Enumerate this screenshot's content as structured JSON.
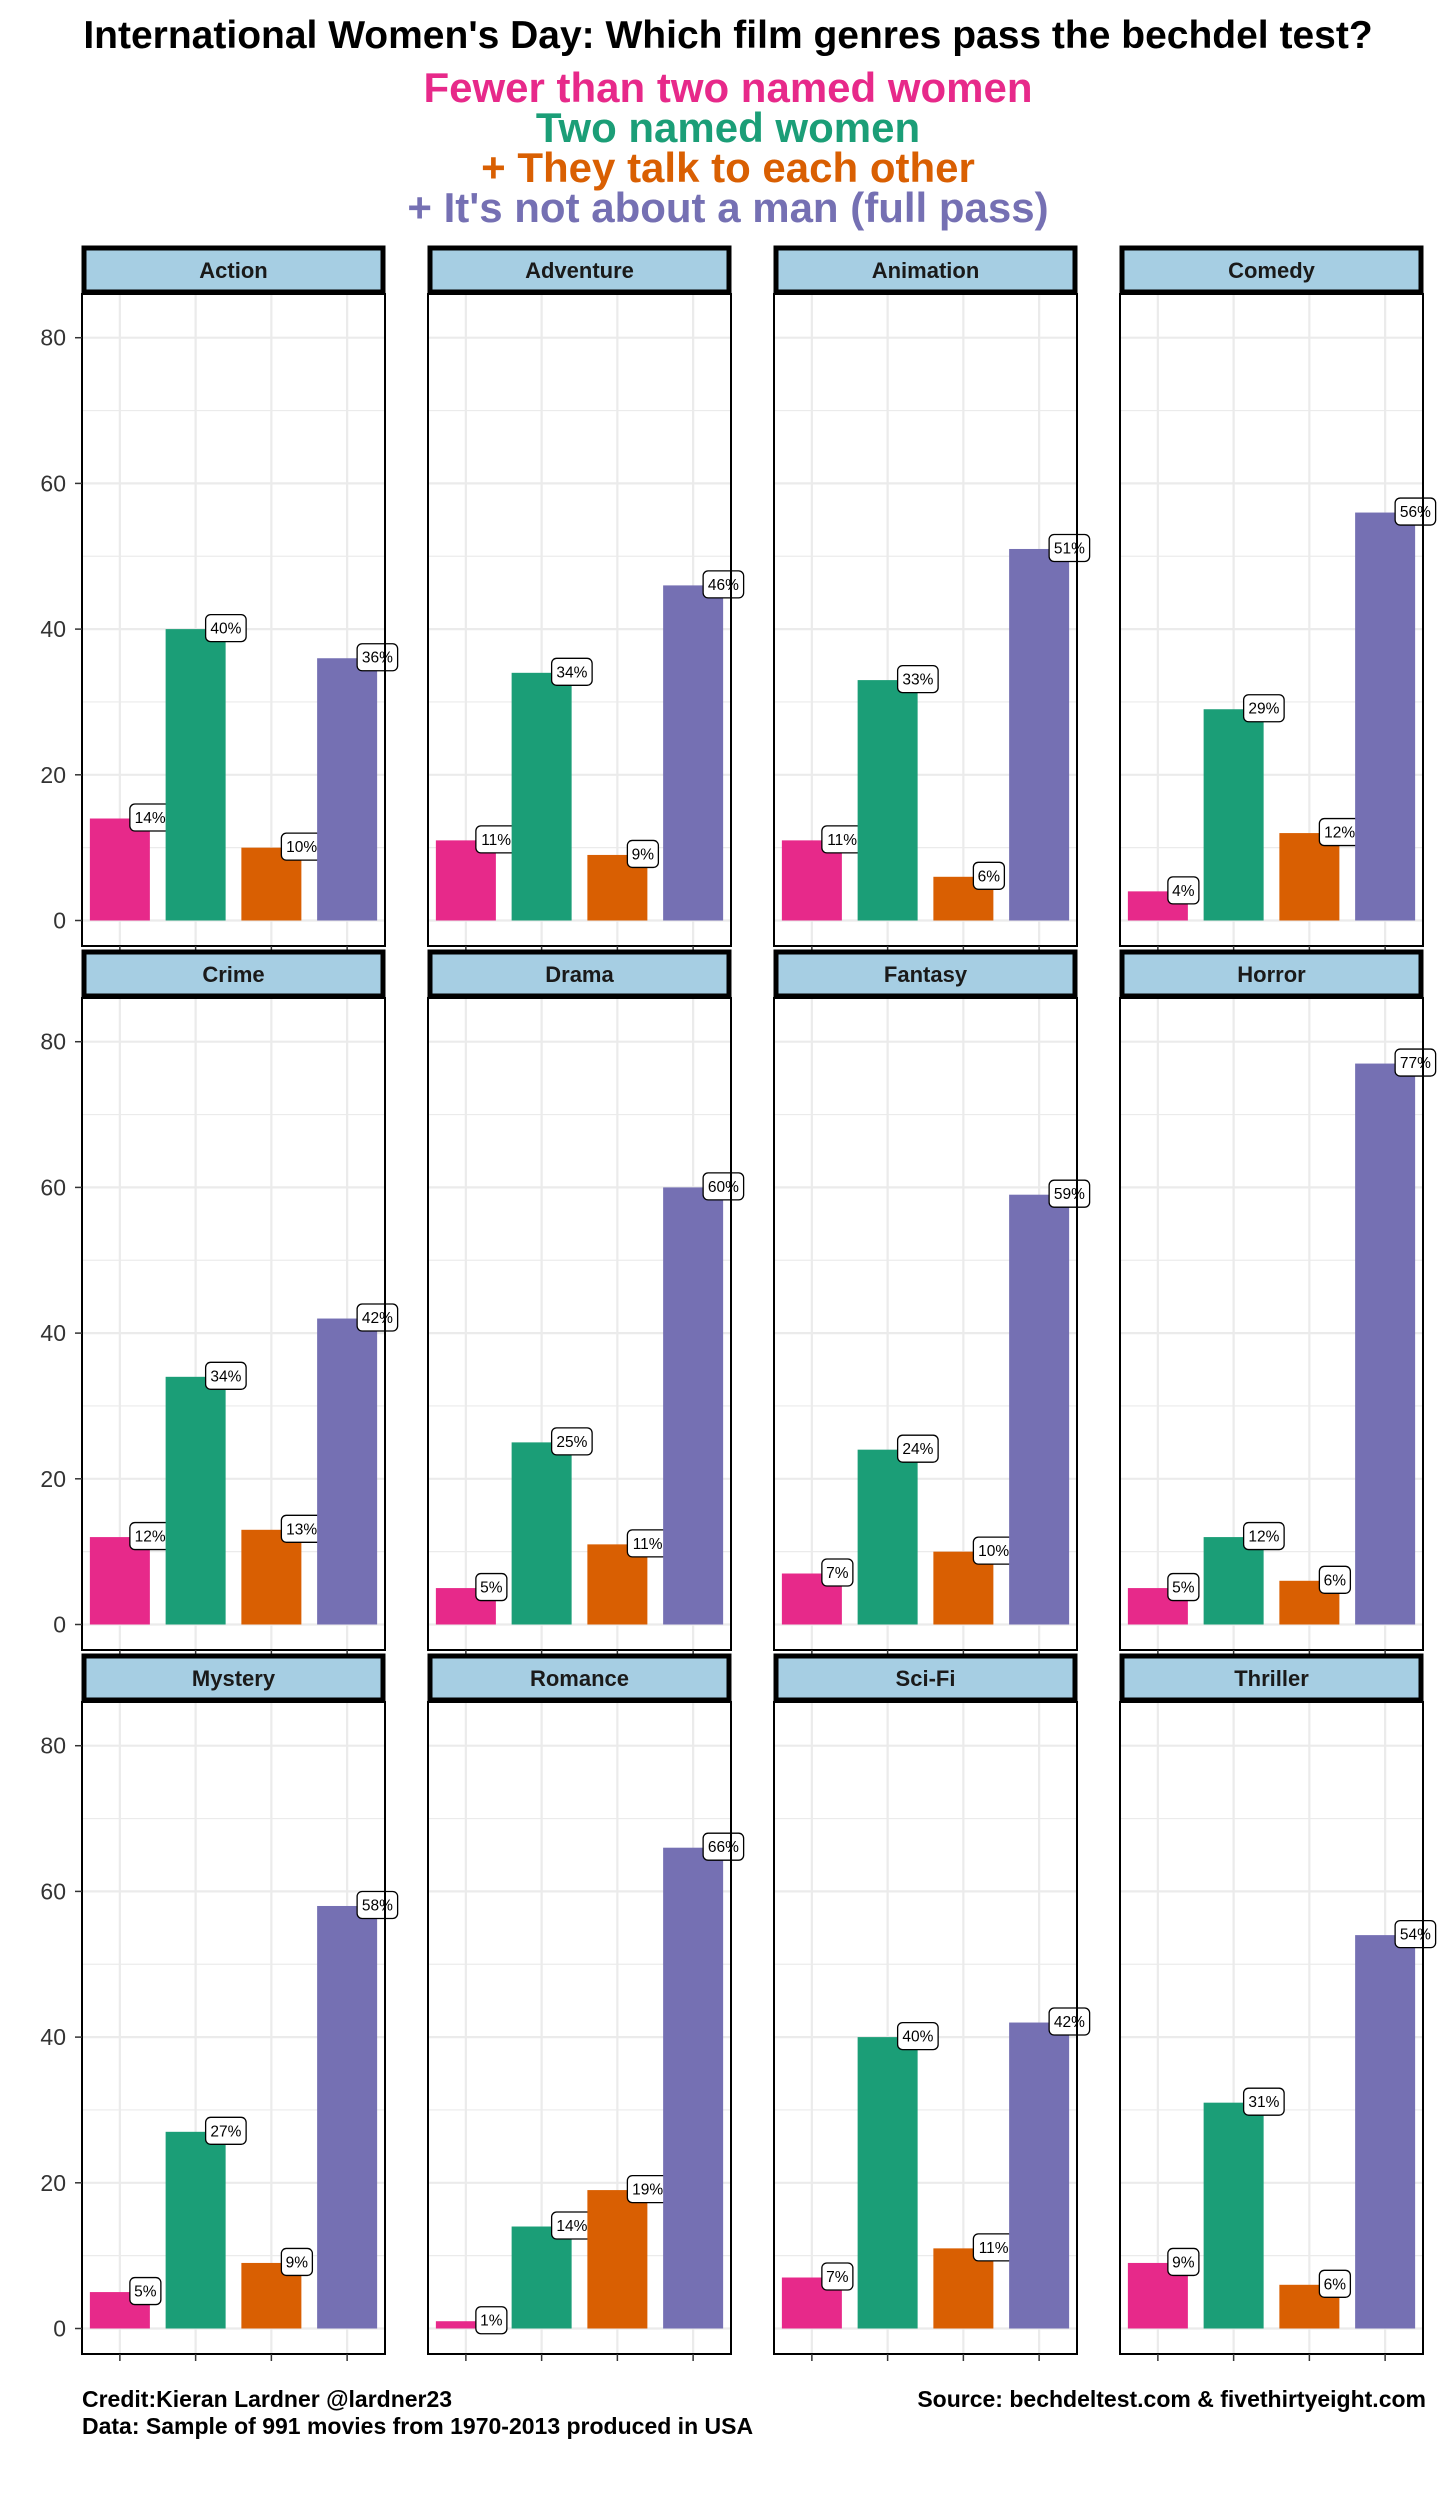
{
  "chart_data": {
    "type": "bar",
    "title": "International Women's Day: Which film genres pass the bechdel test?",
    "legend": [
      {
        "label": "Fewer than two named women",
        "color": "#E7298A"
      },
      {
        "label": "Two named women",
        "color": "#1B9E77"
      },
      {
        "label": "+ They talk to each other",
        "color": "#D95F02"
      },
      {
        "label": "+ It's not about a man (full pass)",
        "color": "#7570B3"
      }
    ],
    "legend_placement": "top-center",
    "y_ticks": [
      "0",
      "20",
      "40",
      "60",
      "80"
    ],
    "ylim": [
      -3.5,
      86
    ],
    "grid": true,
    "facets": [
      {
        "name": "Action",
        "values": [
          14,
          40,
          10,
          36
        ],
        "labels": [
          "14%",
          "40%",
          "10%",
          "36%"
        ]
      },
      {
        "name": "Adventure",
        "values": [
          11,
          34,
          9,
          46
        ],
        "labels": [
          "11%",
          "34%",
          "9%",
          "46%"
        ]
      },
      {
        "name": "Animation",
        "values": [
          11,
          33,
          6,
          51
        ],
        "labels": [
          "11%",
          "33%",
          "6%",
          "51%"
        ]
      },
      {
        "name": "Comedy",
        "values": [
          4,
          29,
          12,
          56
        ],
        "labels": [
          "4%",
          "29%",
          "12%",
          "56%"
        ]
      },
      {
        "name": "Crime",
        "values": [
          12,
          34,
          13,
          42
        ],
        "labels": [
          "12%",
          "34%",
          "13%",
          "42%"
        ]
      },
      {
        "name": "Drama",
        "values": [
          5,
          25,
          11,
          60
        ],
        "labels": [
          "5%",
          "25%",
          "11%",
          "60%"
        ]
      },
      {
        "name": "Fantasy",
        "values": [
          7,
          24,
          10,
          59
        ],
        "labels": [
          "7%",
          "24%",
          "10%",
          "59%"
        ]
      },
      {
        "name": "Horror",
        "values": [
          5,
          12,
          6,
          77
        ],
        "labels": [
          "5%",
          "12%",
          "6%",
          "77%"
        ]
      },
      {
        "name": "Mystery",
        "values": [
          5,
          27,
          9,
          58
        ],
        "labels": [
          "5%",
          "27%",
          "9%",
          "58%"
        ]
      },
      {
        "name": "Romance",
        "values": [
          1,
          14,
          19,
          66
        ],
        "labels": [
          "1%",
          "14%",
          "19%",
          "66%"
        ]
      },
      {
        "name": "Sci-Fi",
        "values": [
          7,
          40,
          11,
          42
        ],
        "labels": [
          "7%",
          "40%",
          "11%",
          "42%"
        ]
      },
      {
        "name": "Thriller",
        "values": [
          9,
          31,
          6,
          54
        ],
        "labels": [
          "9%",
          "31%",
          "6%",
          "54%"
        ]
      }
    ]
  },
  "footer": {
    "credit": "Credit:Kieran Lardner @lardner23",
    "data_note": "Data: Sample of 991 movies from 1970-2013 produced in USA",
    "source": "Source: bechdeltest.com & fivethirtyeight.com"
  },
  "colors": {
    "strip_fill": "#A6CEE3",
    "panel_border": "#000000",
    "grid": "#EBEBEB"
  }
}
